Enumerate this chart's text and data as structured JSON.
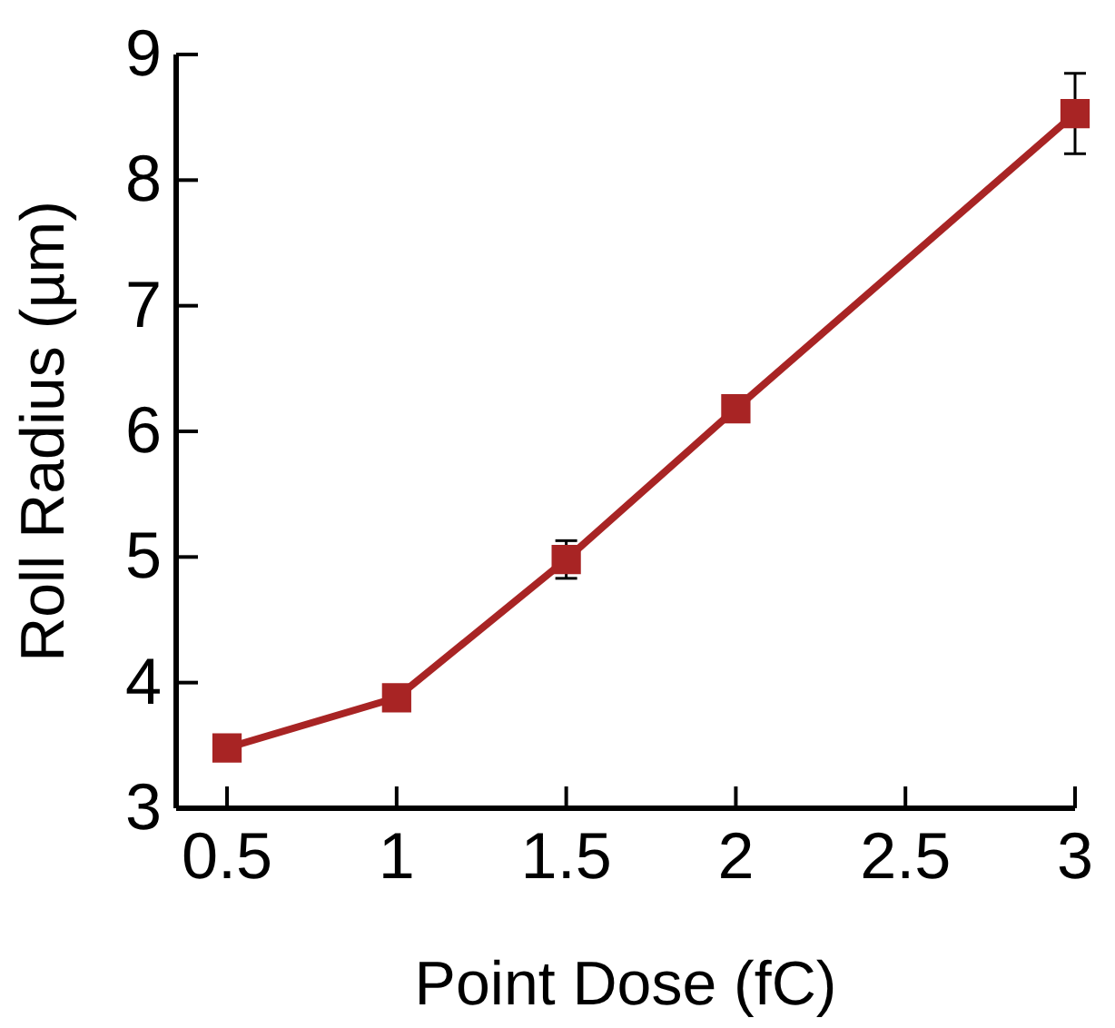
{
  "chart_data": {
    "type": "line",
    "xlabel": "Point Dose (fC)",
    "ylabel": "Roll Radius (µm)",
    "x": [
      0.5,
      1,
      1.5,
      2,
      3
    ],
    "series": [
      {
        "color": "#a82424",
        "values": [
          3.48,
          3.88,
          4.98,
          6.18,
          8.53
        ],
        "errors": [
          null,
          null,
          0.15,
          null,
          0.32
        ]
      }
    ],
    "xlim": [
      0.35,
      3
    ],
    "ylim": [
      3,
      9
    ],
    "xticks": [
      0.5,
      1,
      1.5,
      2,
      2.5,
      3
    ],
    "yticks": [
      3,
      4,
      5,
      6,
      7,
      8,
      9
    ],
    "marker": "square",
    "line_style": "solid",
    "grid": false
  }
}
